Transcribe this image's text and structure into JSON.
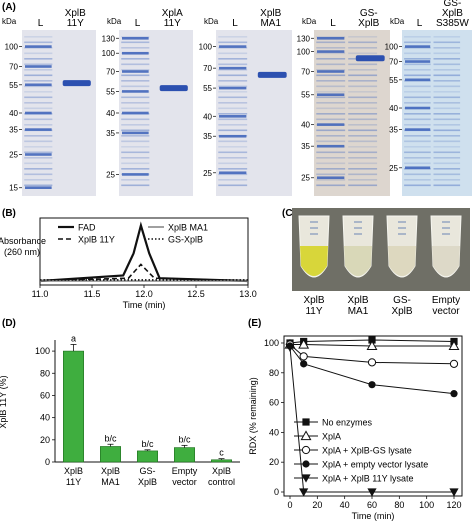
{
  "panels": {
    "A": {
      "letter": "(A)",
      "gels": [
        {
          "unit": "kDa",
          "lanes": [
            "L",
            "XplB\n11Y"
          ],
          "markers": [
            "100",
            "70",
            "55",
            "40",
            "35",
            "25",
            "15"
          ]
        },
        {
          "unit": "kDa",
          "lanes": [
            "L",
            "XplA\n11Y"
          ],
          "markers": [
            "130",
            "100",
            "70",
            "55",
            "40",
            "35",
            "25"
          ]
        },
        {
          "unit": "kDa",
          "lanes": [
            "L",
            "XplB\nMA1"
          ],
          "markers": [
            "100",
            "70",
            "55",
            "40",
            "35",
            "25"
          ]
        },
        {
          "unit": "kDa",
          "lanes": [
            "L",
            "GS-\nXplB"
          ],
          "markers": [
            "130",
            "100",
            "70",
            "55",
            "40",
            "35",
            "25"
          ]
        },
        {
          "unit": "kDa",
          "lanes": [
            "L",
            "GS-\nXplB\nS385W"
          ],
          "markers": [
            "100",
            "70",
            "55",
            "40",
            "35",
            "25"
          ]
        }
      ]
    },
    "B": {
      "letter": "(B)",
      "chart_data": {
        "type": "line",
        "ylabel": "Absorbance\n(260 nm)",
        "xlabel": "Time (min)",
        "xlim": [
          11.0,
          13.0
        ],
        "xticks": [
          "11.0",
          "11.5",
          "12.0",
          "12.5",
          "13.0"
        ],
        "series": [
          {
            "name": "FAD",
            "x": [
              11.0,
              11.8,
              11.9,
              11.97,
              12.05,
              12.15,
              13.0
            ],
            "y": [
              0,
              0.01,
              0.05,
              0.1,
              0.05,
              0.005,
              0
            ]
          },
          {
            "name": "XplB 11Y",
            "x": [
              11.0,
              11.85,
              11.97,
              12.1,
              13.0
            ],
            "y": [
              0,
              0.005,
              0.03,
              0.005,
              0
            ]
          },
          {
            "name": "XplB MA1",
            "x": [
              11.0,
              13.0
            ],
            "y": [
              0,
              0
            ]
          },
          {
            "name": "GS-XplB",
            "x": [
              11.0,
              13.0
            ],
            "y": [
              0.002,
              0.002
            ]
          }
        ]
      }
    },
    "C": {
      "letter": "(C)",
      "tubes": [
        "XplB\n11Y",
        "XplB\nMA1",
        "GS-\nXplB",
        "Empty\nvector"
      ]
    },
    "D": {
      "letter": "(D)",
      "chart_data": {
        "type": "bar",
        "ylabel": "Activity relative to\nXplB 11Y (%)",
        "ylim": [
          0,
          100
        ],
        "yticks": [
          "0",
          "20",
          "40",
          "60",
          "80",
          "100"
        ],
        "categories": [
          "XplB\n11Y",
          "XplB\nMA1",
          "GS-\nXplB",
          "Empty\nvector",
          "XplB\ncontrol"
        ],
        "values": [
          100,
          14,
          10,
          13,
          2
        ],
        "errors": [
          6,
          2,
          1,
          2,
          1
        ],
        "annotations": [
          "a",
          "b/c",
          "b/c",
          "b/c",
          "c"
        ],
        "bar_color": "#3fae3f"
      }
    },
    "E": {
      "letter": "(E)",
      "chart_data": {
        "type": "line",
        "ylabel": "RDX (% remaining)",
        "xlabel": "Time (min)",
        "xlim": [
          0,
          120
        ],
        "ylim": [
          0,
          100
        ],
        "xticks": [
          "0",
          "20",
          "40",
          "60",
          "80",
          "100",
          "120"
        ],
        "yticks": [
          "0",
          "20",
          "40",
          "60",
          "80",
          "100"
        ],
        "series": [
          {
            "name": "No enzymes",
            "marker": "square",
            "x": [
              0,
              10,
              60,
              120
            ],
            "y": [
              100,
              101,
              102,
              101
            ]
          },
          {
            "name": "XplA",
            "marker": "triangle-up-open",
            "x": [
              0,
              10,
              60,
              120
            ],
            "y": [
              99,
              99,
              98,
              98
            ]
          },
          {
            "name": "XplA + XplB-GS lysate",
            "marker": "circle-open",
            "x": [
              0,
              10,
              60,
              120
            ],
            "y": [
              99,
              91,
              87,
              86
            ]
          },
          {
            "name": "XplA + empty vector lysate",
            "marker": "circle",
            "x": [
              0,
              10,
              60,
              120
            ],
            "y": [
              98,
              86,
              72,
              66
            ]
          },
          {
            "name": "XplA + XplB 11Y lysate",
            "marker": "triangle-down",
            "x": [
              0,
              10,
              60,
              120
            ],
            "y": [
              97,
              0,
              0,
              0
            ]
          }
        ]
      }
    }
  }
}
